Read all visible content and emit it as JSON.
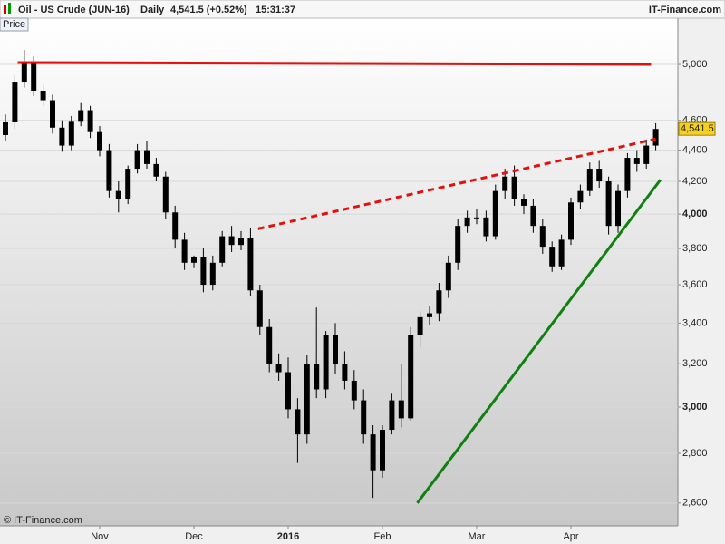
{
  "header": {
    "title": "Oil - US Crude (JUN-16)",
    "period": "Daily",
    "quote": "4,541.5 (+0.52%)",
    "time": "15:31:37",
    "brand": "IT-Finance.com"
  },
  "footer": "© IT-Finance.com",
  "chart_data": {
    "type": "candlestick",
    "panel_label": "Price",
    "log_scale": true,
    "grid": true,
    "color": "#000000",
    "categories": [
      null,
      null,
      null,
      null,
      null,
      null,
      null,
      null,
      null,
      null,
      "Nov",
      null,
      null,
      null,
      null,
      null,
      null,
      null,
      null,
      null,
      "Dec",
      null,
      null,
      null,
      null,
      null,
      null,
      null,
      null,
      null,
      "2016",
      null,
      null,
      null,
      null,
      null,
      null,
      null,
      null,
      null,
      "Feb",
      null,
      null,
      null,
      null,
      null,
      null,
      null,
      null,
      null,
      "Mar",
      null,
      null,
      null,
      null,
      null,
      null,
      null,
      null,
      null,
      "Apr",
      null,
      null,
      null,
      null,
      null,
      null,
      null,
      null,
      null
    ],
    "open": [
      4500,
      4586,
      4873,
      5007,
      4808,
      4740,
      4550,
      4430,
      4590,
      4670,
      4520,
      4400,
      4140,
      4090,
      4280,
      4400,
      4310,
      4230,
      4010,
      3850,
      3720,
      3750,
      3600,
      3720,
      3870,
      3820,
      3860,
      3570,
      3380,
      3200,
      3160,
      2990,
      2880,
      3200,
      3080,
      3340,
      3200,
      3120,
      3030,
      2880,
      2730,
      2900,
      3030,
      2950,
      3340,
      3430,
      3450,
      3570,
      3720,
      3930,
      3980,
      3980,
      3870,
      4140,
      4230,
      4090,
      4050,
      3930,
      3810,
      3700,
      3850,
      4070,
      4140,
      4280,
      4200,
      3930,
      4140,
      4350,
      4310,
      4430
    ],
    "high": [
      4640,
      4920,
      5109,
      5060,
      4850,
      4780,
      4600,
      4630,
      4720,
      4700,
      4560,
      4440,
      4200,
      4300,
      4440,
      4460,
      4350,
      4260,
      4050,
      3890,
      3760,
      3800,
      3760,
      3900,
      3930,
      3900,
      3920,
      3600,
      3420,
      3250,
      3230,
      3040,
      3240,
      3480,
      3360,
      3400,
      3260,
      3170,
      3080,
      2920,
      2920,
      3060,
      3200,
      3380,
      3460,
      3490,
      3610,
      3760,
      3970,
      4020,
      4030,
      4020,
      4180,
      4280,
      4300,
      4120,
      4090,
      3970,
      3840,
      3880,
      4100,
      4180,
      4320,
      4330,
      4230,
      4180,
      4380,
      4400,
      4470,
      4580
    ],
    "low": [
      4460,
      4540,
      4830,
      4770,
      4700,
      4510,
      4390,
      4400,
      4560,
      4480,
      4360,
      4100,
      4010,
      4060,
      4250,
      4280,
      4200,
      3970,
      3800,
      3680,
      3690,
      3560,
      3570,
      3700,
      3780,
      3790,
      3540,
      3340,
      3160,
      3120,
      2950,
      2760,
      2840,
      3040,
      3040,
      3150,
      3080,
      2990,
      2840,
      2620,
      2700,
      2880,
      2910,
      2940,
      3280,
      3390,
      3410,
      3530,
      3680,
      3890,
      3940,
      3840,
      3850,
      4090,
      4050,
      4000,
      3890,
      3770,
      3670,
      3680,
      3820,
      4030,
      4110,
      4160,
      3880,
      3890,
      4100,
      4260,
      4280,
      4400
    ],
    "close": [
      4586,
      4873,
      5007,
      4808,
      4740,
      4550,
      4430,
      4590,
      4670,
      4520,
      4400,
      4140,
      4090,
      4280,
      4400,
      4310,
      4230,
      4010,
      3850,
      3720,
      3750,
      3600,
      3720,
      3870,
      3820,
      3860,
      3570,
      3380,
      3200,
      3160,
      2990,
      2880,
      3200,
      3080,
      3340,
      3200,
      3120,
      3030,
      2880,
      2730,
      2900,
      3030,
      2950,
      3340,
      3430,
      3450,
      3570,
      3720,
      3930,
      3980,
      3980,
      3870,
      4140,
      4230,
      4090,
      4050,
      3930,
      3810,
      3700,
      3850,
      4070,
      4140,
      4280,
      4200,
      3930,
      4140,
      4350,
      4310,
      4430,
      4541.5
    ],
    "last_label": "4,541.5",
    "trendlines": [
      {
        "color": "#e31010",
        "style": "solid",
        "x": [
          1.3,
          68.5
        ],
        "values": [
          5014,
          5000
        ]
      },
      {
        "color": "#e31010",
        "style": "dashed",
        "x": [
          26.8,
          69
        ],
        "values": [
          3913,
          4474
        ]
      },
      {
        "color": "#108010",
        "style": "solid",
        "x": [
          43.7,
          69.5
        ],
        "values": [
          2600,
          4210
        ]
      }
    ],
    "ylim": [
      2513,
      5357
    ],
    "yticks": [
      {
        "value": 2600,
        "label": "2,600"
      },
      {
        "value": 2800,
        "label": "2,800"
      },
      {
        "value": 3000,
        "label": "3,000",
        "bold": true
      },
      {
        "value": 3200,
        "label": "3,200"
      },
      {
        "value": 3400,
        "label": "3,400"
      },
      {
        "value": 3600,
        "label": "3,600"
      },
      {
        "value": 3800,
        "label": "3,800"
      },
      {
        "value": 4000,
        "label": "4,000",
        "bold": true
      },
      {
        "value": 4200,
        "label": "4,200"
      },
      {
        "value": 4400,
        "label": "4,400"
      },
      {
        "value": 4600,
        "label": "4,600"
      },
      {
        "value": 5000,
        "label": "5,000"
      }
    ]
  }
}
